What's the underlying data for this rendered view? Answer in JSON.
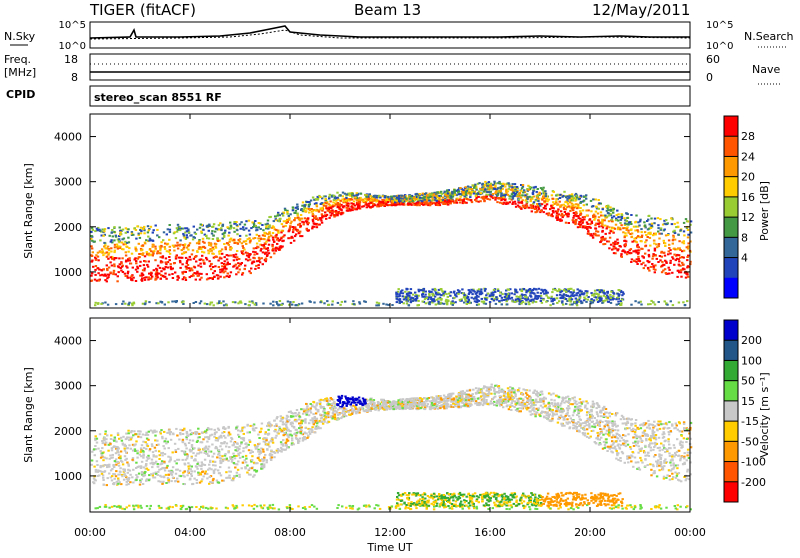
{
  "header": {
    "radar": "TIGER (fitACF)",
    "beam": "Beam 13",
    "date": "12/May/2011"
  },
  "noise_panel": {
    "left_label": "N.Sky",
    "right_label": "N.Search",
    "left_ticks": [
      "10^5",
      "10^0"
    ],
    "right_ticks": [
      "10^5",
      "10^0"
    ]
  },
  "freq_panel": {
    "left_label_1": "Freq.",
    "left_label_2": "[MHz]",
    "left_ticks": [
      "18",
      "8"
    ],
    "right_ticks": [
      "60",
      "0"
    ],
    "right_label": "Nave"
  },
  "cpid": {
    "label": "CPID",
    "value": "stereo_scan 8551 RF"
  },
  "chart_data": [
    {
      "type": "heatmap",
      "quantity": "Power",
      "ylabel": "Slant Range [km]",
      "ylim": [
        200,
        4500
      ],
      "yticks": [
        "4000",
        "3000",
        "2000",
        "1000"
      ],
      "xlim_hours": [
        0,
        24
      ],
      "colorbar": {
        "label": "Power [dB]",
        "ticks": [
          "28",
          "24",
          "20",
          "16",
          "12",
          "8",
          "4"
        ],
        "colors": [
          "#ff0000",
          "#ff5500",
          "#ff9900",
          "#ffcc00",
          "#99cc33",
          "#449944",
          "#336699",
          "#2244bb",
          "#0000ff"
        ]
      }
    },
    {
      "type": "heatmap",
      "quantity": "Velocity",
      "ylabel": "Slant Range [km]",
      "ylim": [
        200,
        4500
      ],
      "yticks": [
        "4000",
        "3000",
        "2000",
        "1000"
      ],
      "xlim_hours": [
        0,
        24
      ],
      "colorbar": {
        "label": "Velocity [m s⁻¹]",
        "ticks": [
          "200",
          "100",
          "50",
          "15",
          "-15",
          "-50",
          "-100",
          "-200"
        ],
        "colors": [
          "#0000cc",
          "#225588",
          "#33aa33",
          "#66dd44",
          "#c8c8c8",
          "#ffcc00",
          "#ff9900",
          "#ff5500",
          "#ff0000"
        ]
      }
    }
  ],
  "xaxis": {
    "ticks": [
      "00:00",
      "04:00",
      "08:00",
      "12:00",
      "16:00",
      "20:00",
      "00:00"
    ],
    "label": "Time UT"
  },
  "colors": {
    "power_high": "#ff1a00",
    "power_mid": "#ffa500",
    "power_low": "#2a5a9a",
    "velocity_gray": "#c8c8c8",
    "velocity_neg": "#ffaa00",
    "velocity_pos": "#1c2ee0"
  }
}
